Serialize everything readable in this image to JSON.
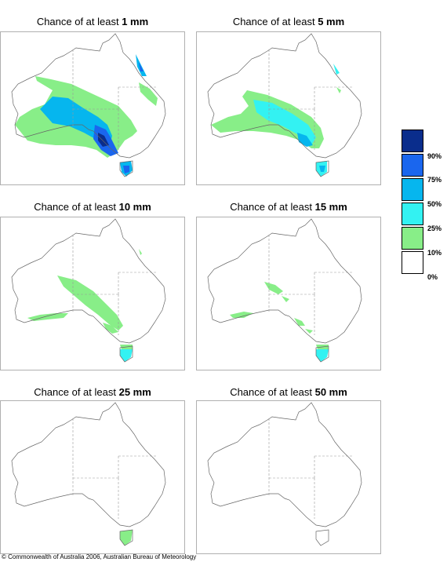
{
  "panels": [
    {
      "title_prefix": "Chance of at least ",
      "threshold": "1 mm"
    },
    {
      "title_prefix": "Chance of at least ",
      "threshold": "5 mm"
    },
    {
      "title_prefix": "Chance of at least ",
      "threshold": "10 mm"
    },
    {
      "title_prefix": "Chance of at least ",
      "threshold": "15 mm"
    },
    {
      "title_prefix": "Chance of at least ",
      "threshold": "25 mm"
    },
    {
      "title_prefix": "Chance of at least ",
      "threshold": "50 mm"
    }
  ],
  "legend": {
    "colors": [
      "#0a2d8c",
      "#1a66ee",
      "#06b6ee",
      "#33f2f2",
      "#88ee88",
      "#ffffff"
    ],
    "labels": [
      "90%",
      "75%",
      "50%",
      "25%",
      "10%",
      "0%"
    ]
  },
  "copyright": "© Commonwealth of Australia 2006, Australian Bureau of Meteorology"
}
